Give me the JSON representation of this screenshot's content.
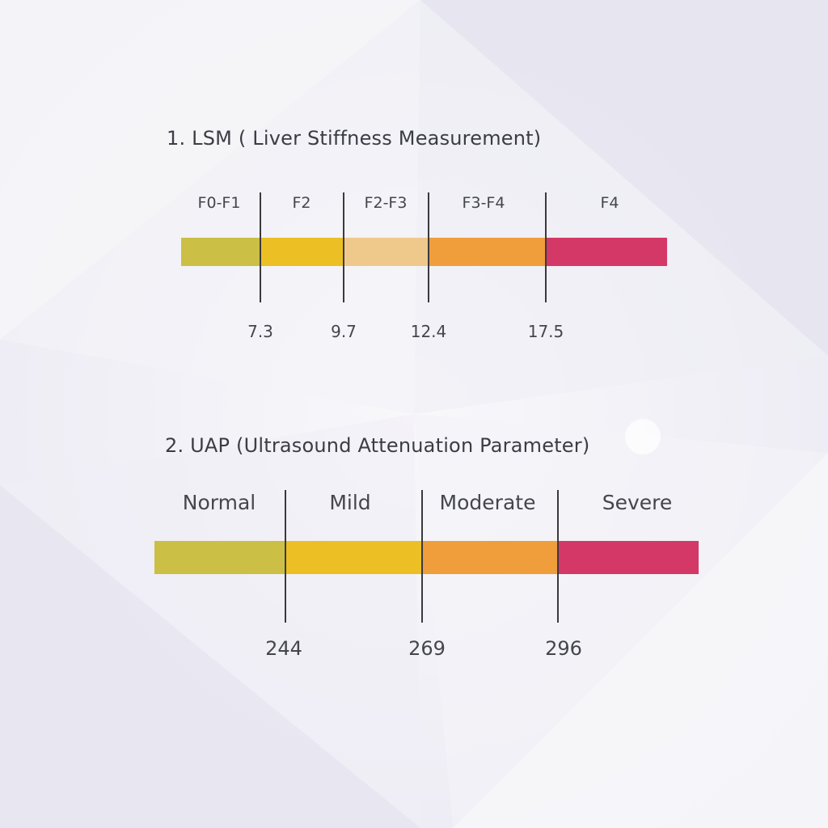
{
  "lsm": {
    "title": "1. LSM ( Liver Stiffness Measurement)",
    "segments": [
      {
        "label": "F0-F1",
        "color": "#ccbf45"
      },
      {
        "label": "F2",
        "color": "#ecbf24"
      },
      {
        "label": "F2-F3",
        "color": "#efc98c"
      },
      {
        "label": "F3-F4",
        "color": "#f09d3b"
      },
      {
        "label": "F4",
        "color": "#d43866"
      }
    ],
    "cutoffs": [
      "7.3",
      "9.7",
      "12.4",
      "17.5"
    ]
  },
  "uap": {
    "title": "2. UAP (Ultrasound Attenuation Parameter)",
    "segments": [
      {
        "label": "Normal",
        "color": "#ccbf45"
      },
      {
        "label": "Mild",
        "color": "#ecbf24"
      },
      {
        "label": "Moderate",
        "color": "#f09d3b"
      },
      {
        "label": "Severe",
        "color": "#d43866"
      }
    ],
    "cutoffs": [
      "244",
      "269",
      "296"
    ]
  }
}
